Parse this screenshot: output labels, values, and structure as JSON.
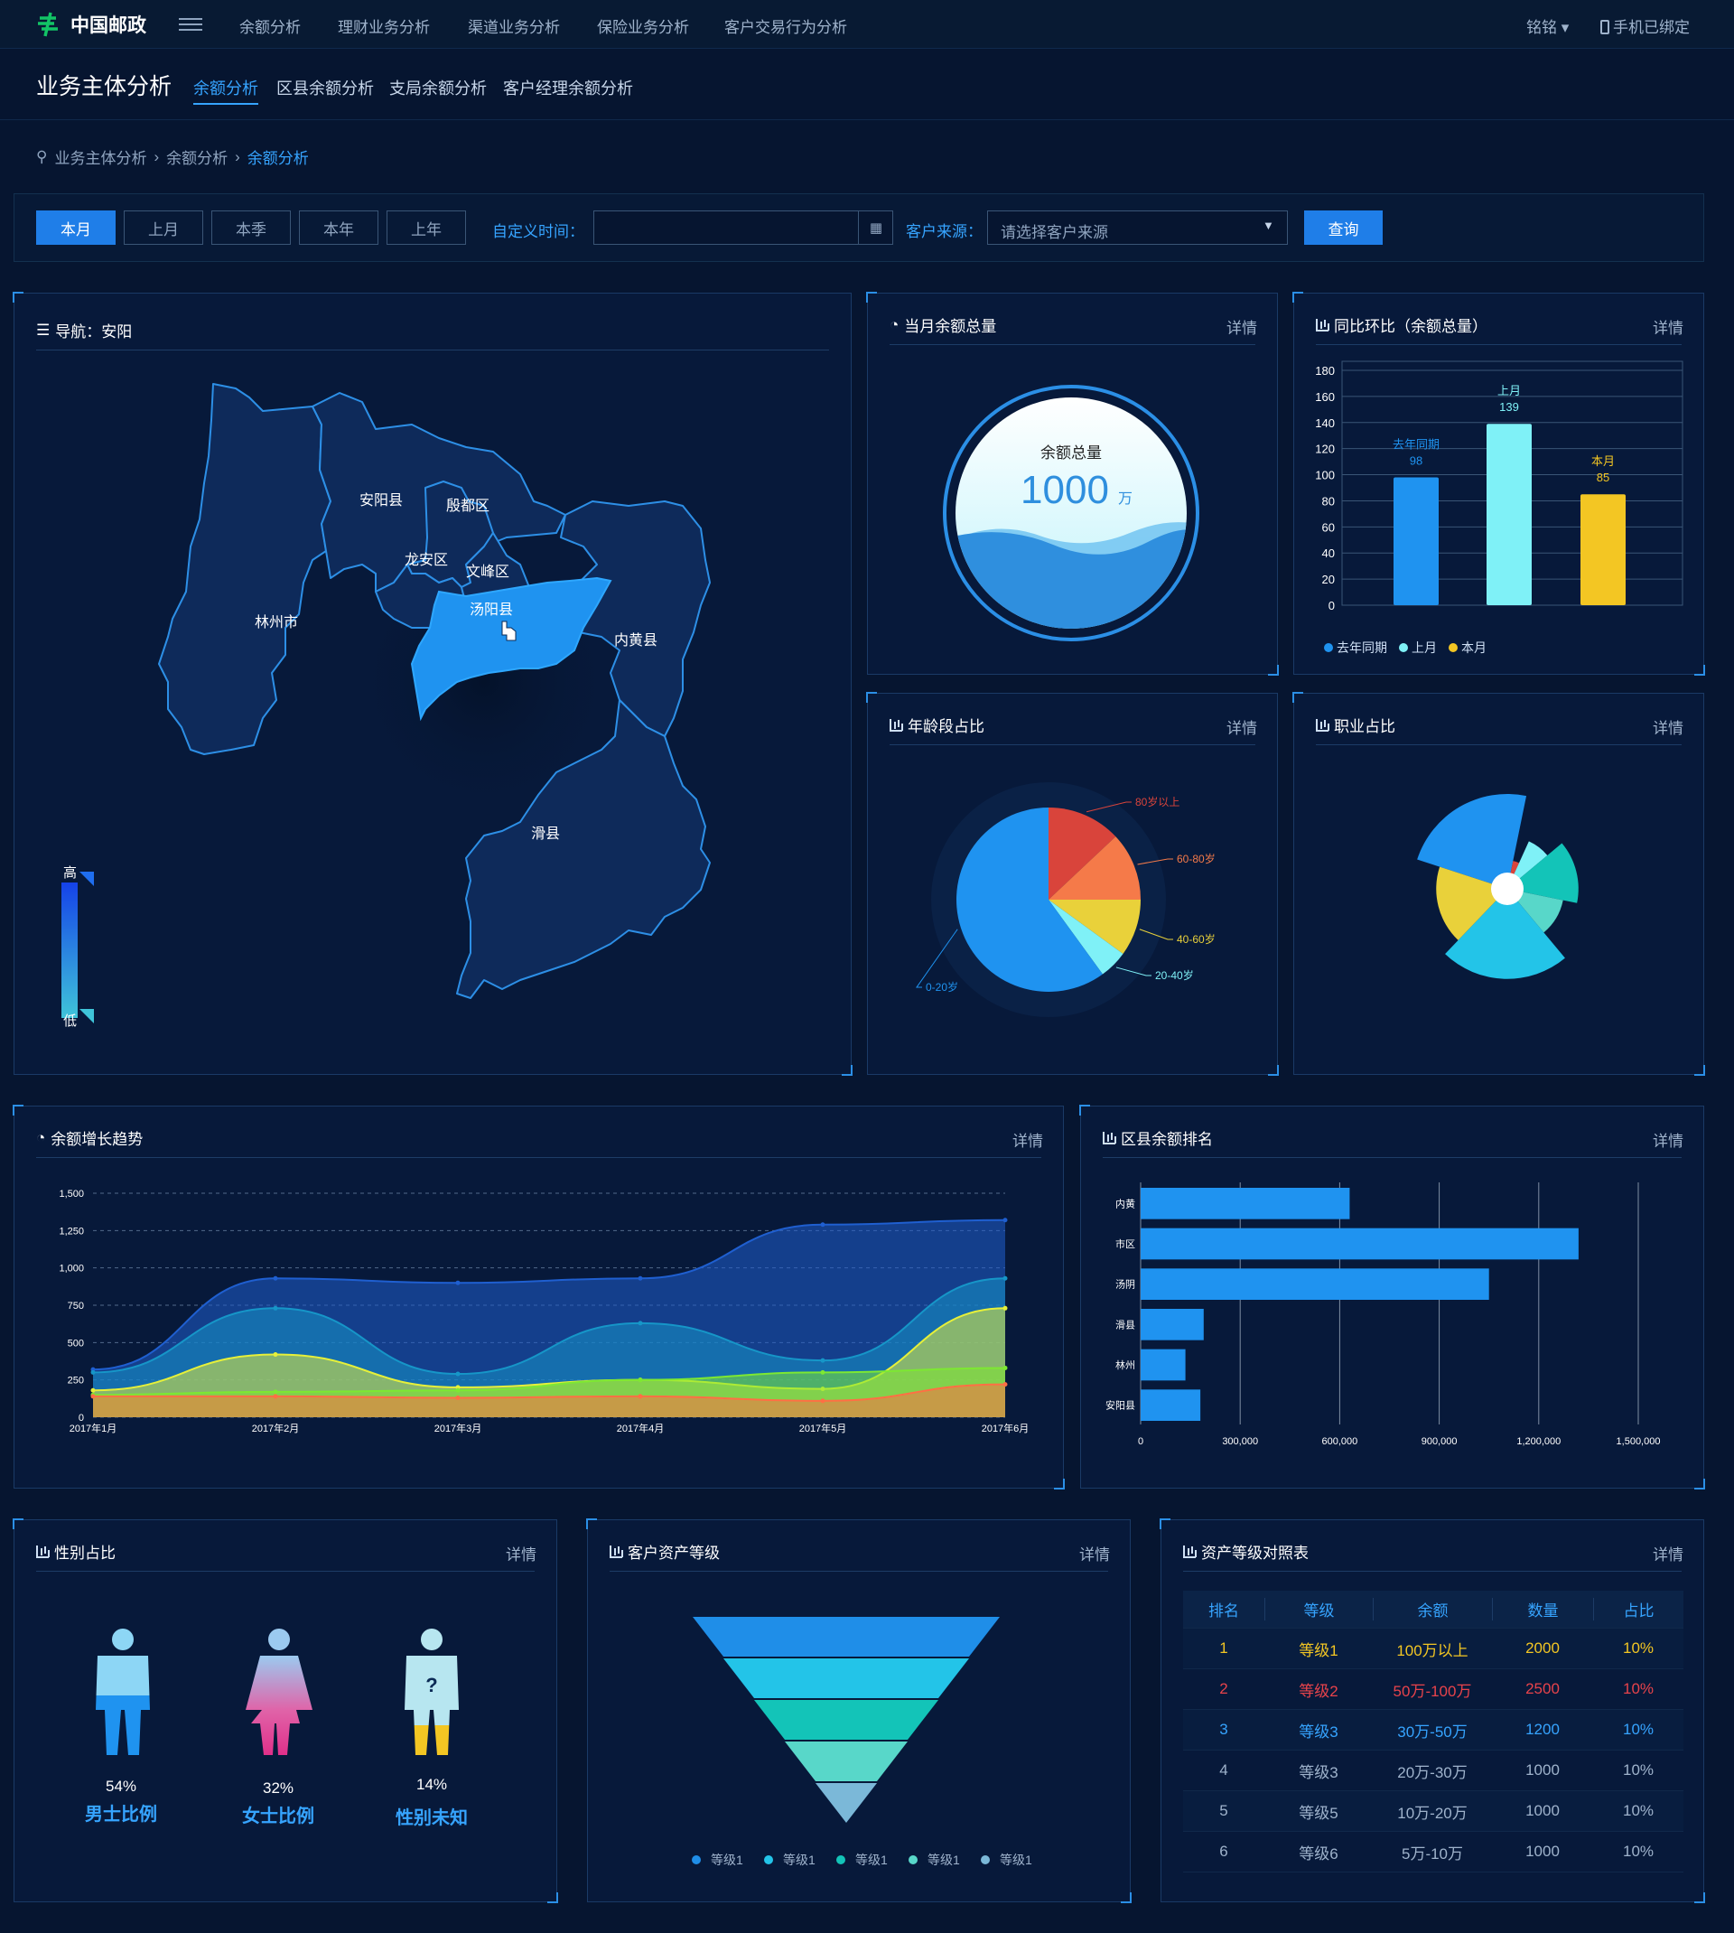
{
  "topnav": {
    "brand": "中国邮政",
    "menu": [
      "余额分析",
      "理财业务分析",
      "渠道业务分析",
      "保险业务分析",
      "客户交易行为分析"
    ],
    "user": "铭铭 ▾",
    "phone": "手机已绑定"
  },
  "subheader": {
    "title": "业务主体分析",
    "tabs": [
      "余额分析",
      "区县余额分析",
      "支局余额分析",
      "客户经理余额分析"
    ]
  },
  "breadcrumb": [
    "业务主体分析",
    "余额分析",
    "余额分析"
  ],
  "filter": {
    "periods": [
      "本月",
      "上月",
      "本季",
      "本年",
      "上年"
    ],
    "custom_time_label": "自定义时间：",
    "source_label": "客户来源：",
    "source_placeholder": "请选择客户来源",
    "query": "查询"
  },
  "map_panel": {
    "title": "导航：安阳",
    "regions": [
      "安阳县",
      "殷都区",
      "龙安区",
      "文峰区",
      "汤阳县",
      "林州市",
      "内黄县",
      "滑县"
    ],
    "legend_high": "高",
    "legend_low": "低"
  },
  "total_panel": {
    "title": "当月余额总量",
    "detail": "详情",
    "label": "余额总量",
    "value": "1000",
    "unit": "万"
  },
  "yoy_panel": {
    "title": "同比环比（余额总量）",
    "detail": "详情"
  },
  "age_panel": {
    "title": "年龄段占比",
    "detail": "详情"
  },
  "job_panel": {
    "title": "职业占比",
    "detail": "详情"
  },
  "trend_panel": {
    "title": "余额增长趋势",
    "detail": "详情"
  },
  "rank_panel": {
    "title": "区县余额排名",
    "detail": "详情"
  },
  "gender_panel": {
    "title": "性别占比",
    "detail": "详情",
    "items": [
      {
        "pct": "54%",
        "label": "男士比例"
      },
      {
        "pct": "32%",
        "label": "女士比例"
      },
      {
        "pct": "14%",
        "label": "性别未知"
      }
    ]
  },
  "asset_panel": {
    "title": "客户资产等级",
    "detail": "详情"
  },
  "table_panel": {
    "title": "资产等级对照表",
    "detail": "详情",
    "headers": [
      "排名",
      "等级",
      "余额",
      "数量",
      "占比"
    ],
    "rows": [
      [
        "1",
        "等级1",
        "100万以上",
        "2000",
        "10%"
      ],
      [
        "2",
        "等级2",
        "50万-100万",
        "2500",
        "10%"
      ],
      [
        "3",
        "等级3",
        "30万-50万",
        "1200",
        "10%"
      ],
      [
        "4",
        "等级3",
        "20万-30万",
        "1000",
        "10%"
      ],
      [
        "5",
        "等级5",
        "10万-20万",
        "1000",
        "10%"
      ],
      [
        "6",
        "等级6",
        "5万-10万",
        "1000",
        "10%"
      ]
    ],
    "row_colors": [
      "#f3c623",
      "#e8434b",
      "#36a4ff",
      "#9fb3cc",
      "#9fb3cc",
      "#9fb3cc"
    ]
  },
  "chart_data": [
    {
      "type": "bar",
      "categories": [
        "去年同期",
        "上月",
        "本月"
      ],
      "values": [
        98,
        139,
        85
      ],
      "ylim": [
        0,
        180
      ],
      "yticks": [
        0,
        20,
        40,
        60,
        80,
        100,
        120,
        140,
        160,
        180
      ],
      "colors": [
        "#1f93f0",
        "#7ff1f7",
        "#f3c623"
      ],
      "legend": [
        "去年同期",
        "上月",
        "本月"
      ],
      "legend_position": "bottom-left"
    },
    {
      "type": "pie",
      "labels": [
        "80岁以上",
        "60-80岁",
        "40-60岁",
        "20-40岁",
        "0-20岁"
      ],
      "values": [
        13,
        12,
        10,
        5,
        60
      ],
      "colors": [
        "#d9443b",
        "#f57a49",
        "#e9d13a",
        "#7ff1f7",
        "#1f93f0"
      ]
    },
    {
      "type": "pie",
      "subtype": "rose",
      "values": [
        26,
        4,
        8,
        16,
        12,
        26,
        20
      ],
      "radii": [
        1.0,
        0.3,
        0.55,
        0.75,
        0.6,
        0.95,
        0.75
      ],
      "colors": [
        "#1f93f0",
        "#d9443b",
        "#7ff1f7",
        "#13c4b8",
        "#58d7c9",
        "#23c4e8",
        "#e9d13a"
      ]
    },
    {
      "type": "area",
      "x": [
        "2017年1月",
        "2017年2月",
        "2017年3月",
        "2017年4月",
        "2017年5月",
        "2017年6月"
      ],
      "yticks": [
        "0",
        "250",
        "500",
        "750",
        "1,000",
        "1,250",
        "1,500"
      ],
      "ylim": [
        0,
        1500
      ],
      "series": [
        {
          "values": [
            320,
            930,
            900,
            930,
            1290,
            1320
          ],
          "color": "#1f5fd0"
        },
        {
          "values": [
            300,
            730,
            290,
            630,
            380,
            930
          ],
          "color": "#1696c8"
        },
        {
          "values": [
            180,
            420,
            200,
            250,
            190,
            730
          ],
          "color": "#e6f03a"
        },
        {
          "values": [
            150,
            170,
            180,
            250,
            300,
            330
          ],
          "color": "#7de832"
        },
        {
          "values": [
            140,
            140,
            130,
            140,
            110,
            220
          ],
          "color": "#ff6f44"
        }
      ]
    },
    {
      "type": "bar",
      "orientation": "horizontal",
      "categories": [
        "内黄",
        "市区",
        "汤阴",
        "滑县",
        "林州",
        "安阳县"
      ],
      "values": [
        630000,
        1320000,
        1050000,
        190000,
        135000,
        180000
      ],
      "xlim": [
        0,
        1500000
      ],
      "xticks": [
        "0",
        "300,000",
        "600,000",
        "900,000",
        "1,200,000",
        "1,500,000"
      ],
      "color": "#1f93f0"
    },
    {
      "type": "funnel",
      "legend": [
        "等级1",
        "等级1",
        "等级1",
        "等级1",
        "等级1"
      ],
      "colors": [
        "#1f8ee8",
        "#23c4e8",
        "#13c4b8",
        "#58d7c9",
        "#7bb8d8"
      ]
    }
  ]
}
